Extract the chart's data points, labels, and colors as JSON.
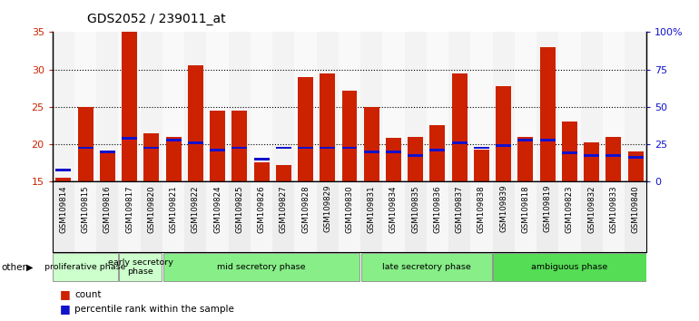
{
  "title": "GDS2052 / 239011_at",
  "samples": [
    "GSM109814",
    "GSM109815",
    "GSM109816",
    "GSM109817",
    "GSM109820",
    "GSM109821",
    "GSM109822",
    "GSM109824",
    "GSM109825",
    "GSM109826",
    "GSM109827",
    "GSM109828",
    "GSM109829",
    "GSM109830",
    "GSM109831",
    "GSM109834",
    "GSM109835",
    "GSM109836",
    "GSM109837",
    "GSM109838",
    "GSM109839",
    "GSM109818",
    "GSM109819",
    "GSM109823",
    "GSM109832",
    "GSM109833",
    "GSM109840"
  ],
  "count_values": [
    15.5,
    25.0,
    19.0,
    35.0,
    21.5,
    21.0,
    30.5,
    24.5,
    24.5,
    17.5,
    17.2,
    29.0,
    29.5,
    27.2,
    25.0,
    20.8,
    21.0,
    22.5,
    29.5,
    19.2,
    27.8,
    21.0,
    33.0,
    23.0,
    20.2,
    21.0,
    19.0
  ],
  "percentile_values": [
    16.5,
    19.5,
    19.0,
    20.8,
    19.5,
    20.5,
    20.2,
    19.2,
    19.5,
    18.0,
    19.5,
    19.5,
    19.5,
    19.5,
    19.0,
    19.0,
    18.5,
    19.2,
    20.2,
    19.5,
    19.8,
    20.5,
    20.5,
    18.8,
    18.5,
    18.5,
    18.2
  ],
  "phases": [
    {
      "label": "proliferative phase",
      "start": 0,
      "end": 3,
      "color": "#ccffcc"
    },
    {
      "label": "early secretory\nphase",
      "start": 3,
      "end": 5,
      "color": "#ccffcc"
    },
    {
      "label": "mid secretory phase",
      "start": 5,
      "end": 14,
      "color": "#88ee88"
    },
    {
      "label": "late secretory phase",
      "start": 14,
      "end": 20,
      "color": "#88ee88"
    },
    {
      "label": "ambiguous phase",
      "start": 20,
      "end": 27,
      "color": "#55dd55"
    }
  ],
  "ylim_min": 15,
  "ylim_max": 35,
  "yticks": [
    15,
    20,
    25,
    30,
    35
  ],
  "right_ytick_labels": [
    "0",
    "25",
    "50",
    "75",
    "100%"
  ],
  "bar_color": "#cc2200",
  "percentile_color": "#1111cc",
  "grid_lines": [
    20,
    25,
    30
  ],
  "title_fontsize": 10,
  "left_tick_color": "#cc2200",
  "right_tick_color": "#1111cc",
  "col_bg_even": "#dddddd",
  "col_bg_odd": "#eeeeee"
}
